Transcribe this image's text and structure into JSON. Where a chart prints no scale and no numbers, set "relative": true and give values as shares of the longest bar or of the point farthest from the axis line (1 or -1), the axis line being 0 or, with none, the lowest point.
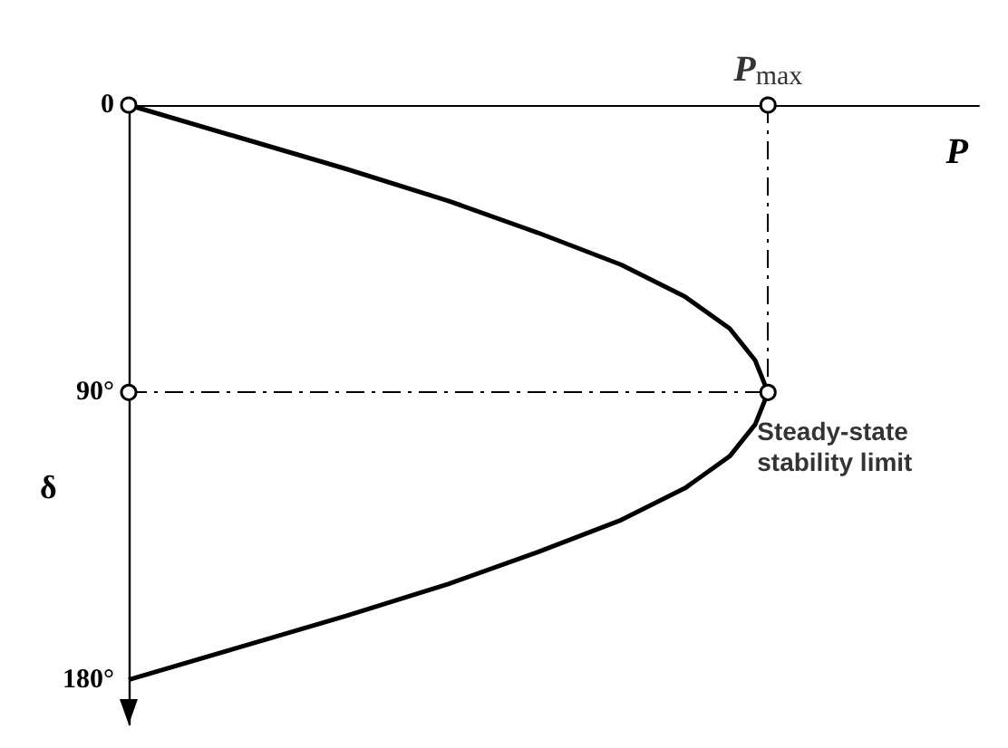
{
  "chart_data": {
    "type": "line",
    "orientation": "horizontal",
    "xlabel": "P",
    "ylabel": "δ",
    "relative": true,
    "ylim": [
      194,
      0
    ],
    "yticks": [
      0,
      {
        "value": 90,
        "label": "90°"
      },
      {
        "value": 180,
        "label": "180°"
      }
    ],
    "series": [
      {
        "color": "#000000",
        "marker": "none",
        "x": [
          0,
          10,
          20,
          30,
          40,
          50,
          60,
          70,
          80,
          90,
          100,
          110,
          120,
          130,
          140,
          150,
          160,
          170,
          180
        ],
        "values": [
          0,
          0.17,
          0.34,
          0.5,
          0.64,
          0.77,
          0.87,
          0.94,
          0.98,
          1,
          0.98,
          0.94,
          0.87,
          0.77,
          0.64,
          0.5,
          0.34,
          0.17,
          0
        ]
      },
      {
        "type": "scatter",
        "color": "#000000",
        "marker": "circle",
        "x": [
          0,
          0,
          90,
          90
        ],
        "values": [
          0,
          1,
          0,
          1
        ]
      }
    ],
    "ref_lines": [
      {
        "axis": "x",
        "value": 1,
        "line_style": "dashed",
        "color": "#000000"
      },
      {
        "axis": "y",
        "value": 90,
        "line_style": "dashed",
        "color": "#000000"
      }
    ],
    "annotations": [
      "P$_{max}$",
      "Steady-state stability limit"
    ]
  }
}
